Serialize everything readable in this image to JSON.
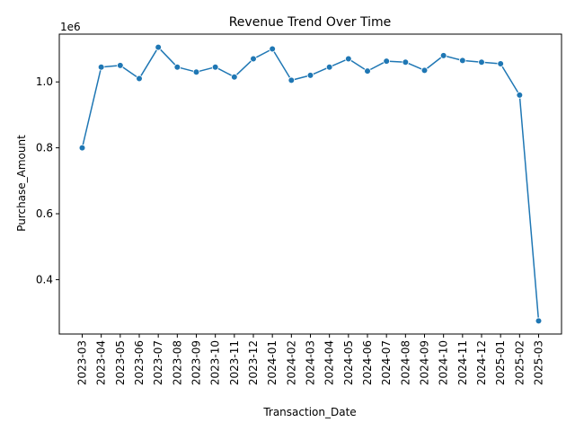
{
  "chart_data": {
    "type": "line",
    "title": "Revenue Trend Over Time",
    "xlabel": "Transaction_Date",
    "ylabel": "Purchase_Amount",
    "y_offset_label": "1e6",
    "ylim": [
      0.235,
      1.145
    ],
    "yticks": [
      0.4,
      0.6,
      0.8,
      1.0
    ],
    "ytick_labels": [
      "0.4",
      "0.6",
      "0.8",
      "1.0"
    ],
    "grid": false,
    "legend": "none",
    "series": [
      {
        "name": "Purchase_Amount",
        "color": "#1f77b4",
        "marker": "circle",
        "values": [
          0.8,
          1.045,
          1.05,
          1.01,
          1.105,
          1.045,
          1.03,
          1.045,
          1.015,
          1.07,
          1.1,
          1.005,
          1.02,
          1.045,
          1.07,
          1.033,
          1.063,
          1.06,
          1.035,
          1.08,
          1.065,
          1.06,
          1.055,
          0.96,
          0.275
        ]
      }
    ],
    "categories": [
      "2023-03",
      "2023-04",
      "2023-05",
      "2023-06",
      "2023-07",
      "2023-08",
      "2023-09",
      "2023-10",
      "2023-11",
      "2023-12",
      "2024-01",
      "2024-02",
      "2024-03",
      "2024-04",
      "2024-05",
      "2024-06",
      "2024-07",
      "2024-08",
      "2024-09",
      "2024-10",
      "2024-11",
      "2024-12",
      "2025-01",
      "2025-02",
      "2025-03"
    ]
  }
}
